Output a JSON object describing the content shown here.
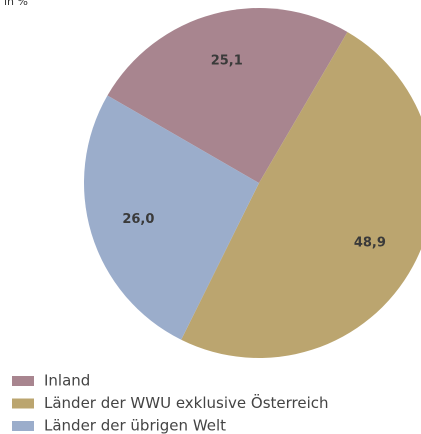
{
  "chart_data": {
    "type": "pie",
    "subtitle": "in %",
    "categories": [
      "Inland",
      "Länder der WWU exklusive Österreich",
      "Länder der übrigen Welt"
    ],
    "values": [
      25.1,
      48.9,
      26.0
    ],
    "value_labels": [
      "25,1",
      "48,9",
      "26,0"
    ],
    "colors": [
      "#a8858f",
      "#bba56f",
      "#9badcb"
    ],
    "legend": "bottom-left"
  }
}
